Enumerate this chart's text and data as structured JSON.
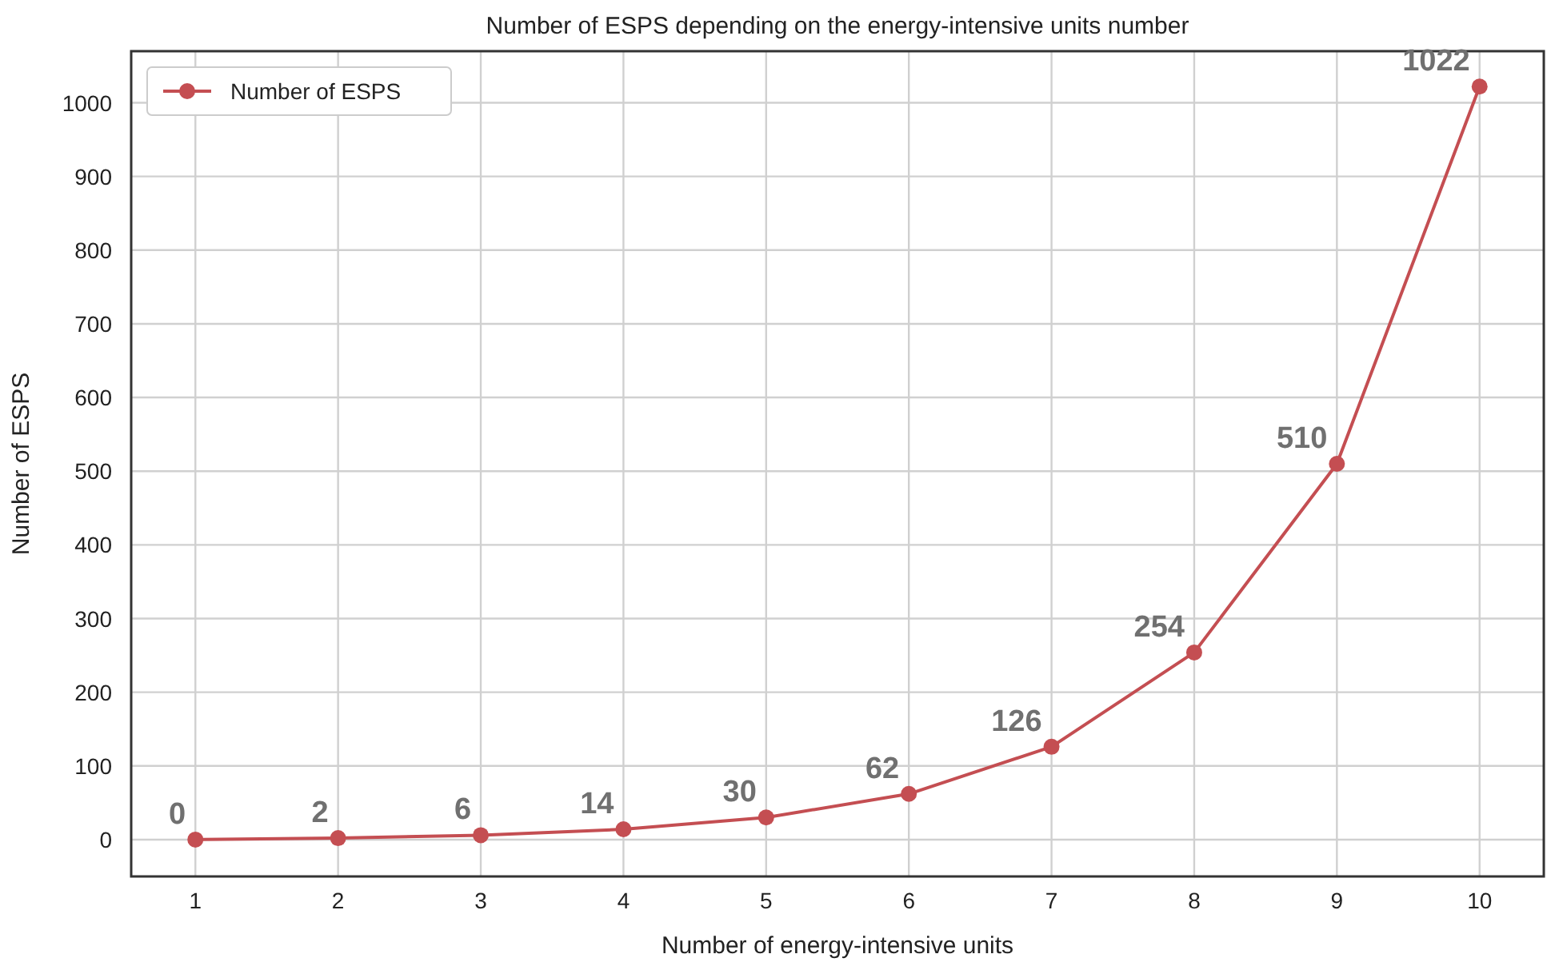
{
  "chart_data": {
    "type": "line",
    "title": "Number of ESPS depending on the energy-intensive units number",
    "xlabel": "Number of energy-intensive units",
    "ylabel": "Number of ESPS",
    "x": [
      1,
      2,
      3,
      4,
      5,
      6,
      7,
      8,
      9,
      10
    ],
    "series": [
      {
        "name": "Number of ESPS",
        "color": "#c44e52",
        "values": [
          0,
          2,
          6,
          14,
          30,
          62,
          126,
          254,
          510,
          1022
        ]
      }
    ],
    "xlim": [
      0.55,
      10.45
    ],
    "xticks": [
      1,
      2,
      3,
      4,
      5,
      6,
      7,
      8,
      9,
      10
    ],
    "ylim": [
      -50,
      1070
    ],
    "yticks": [
      0,
      100,
      200,
      300,
      400,
      500,
      600,
      700,
      800,
      900,
      1000
    ],
    "grid": true,
    "legend": "top left",
    "marker": "circle",
    "line_style": "solid",
    "data_labels": true
  }
}
